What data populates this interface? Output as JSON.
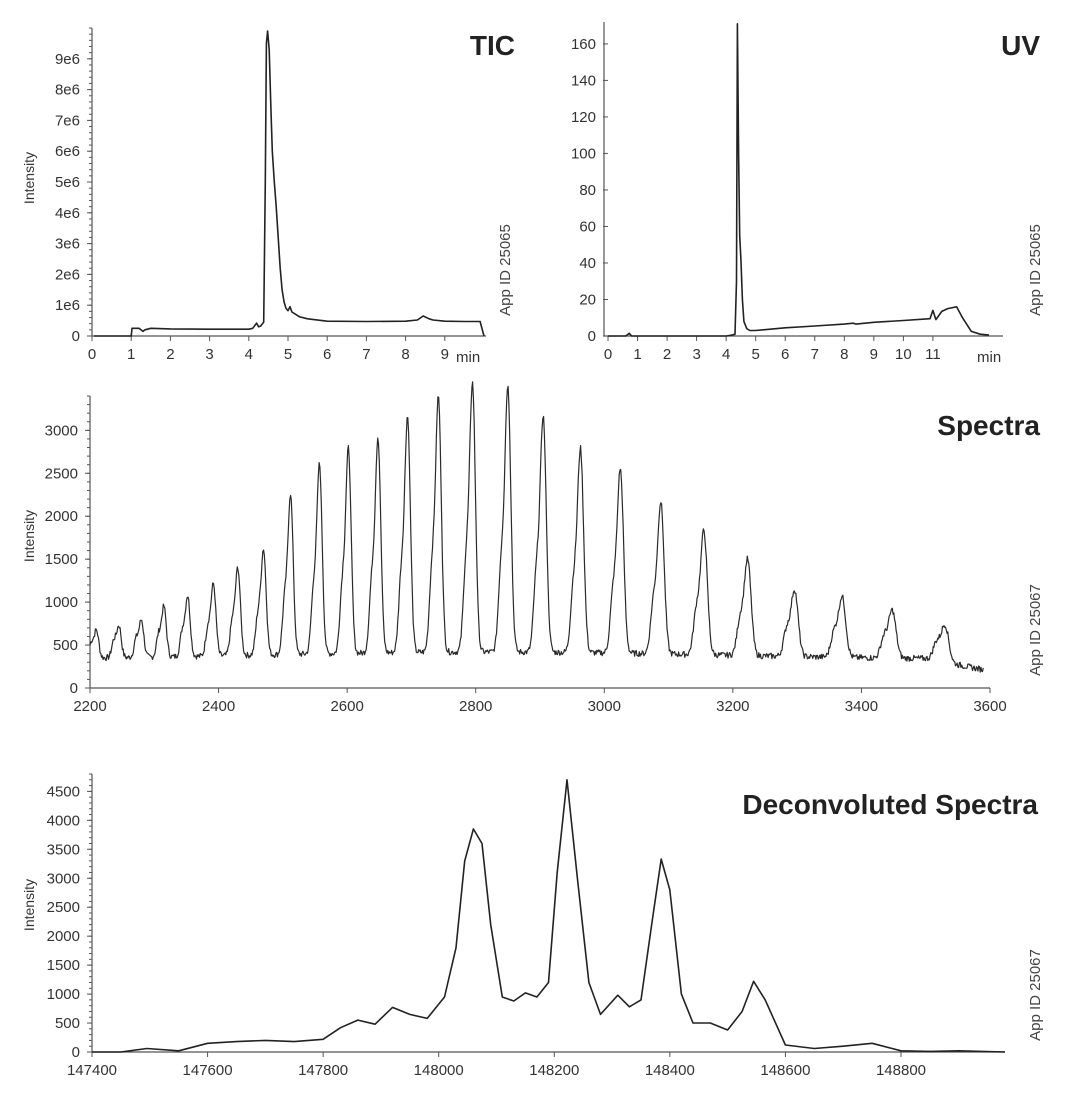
{
  "chart_data": [
    {
      "id": "tic",
      "type": "line",
      "title": "TIC",
      "ylabel": "Intensity",
      "xunit": "min",
      "side_note": "App ID  25065",
      "xlim": [
        0,
        10
      ],
      "ylim": [
        0,
        10000000
      ],
      "xticks": [
        0,
        1,
        2,
        3,
        4,
        5,
        6,
        7,
        8,
        9
      ],
      "yticks": [
        0,
        1000000,
        2000000,
        3000000,
        4000000,
        5000000,
        6000000,
        7000000,
        8000000,
        9000000
      ],
      "ytick_labels": [
        "0",
        "1e6",
        "2e6",
        "3e6",
        "4e6",
        "5e6",
        "6e6",
        "7e6",
        "8e6",
        "9e6"
      ],
      "series": [
        {
          "x": [
            0.05,
            1.0,
            1.02,
            1.2,
            1.3,
            1.35,
            1.5,
            2,
            3,
            4,
            4.1,
            4.2,
            4.25,
            4.3,
            4.38,
            4.42,
            4.45,
            4.48,
            4.52,
            4.56,
            4.6,
            4.65,
            4.7,
            4.75,
            4.8,
            4.85,
            4.9,
            4.95,
            5.0,
            5.05,
            5.1,
            5.2,
            5.3,
            5.5,
            6,
            7,
            8,
            8.3,
            8.45,
            8.6,
            8.7,
            9,
            9.5,
            9.9,
            10.0
          ],
          "y": [
            0,
            0,
            250000,
            250000,
            150000,
            200000,
            250000,
            230000,
            220000,
            220000,
            250000,
            420000,
            300000,
            320000,
            450000,
            5000000,
            9500000,
            9900000,
            9300000,
            7500000,
            6000000,
            5000000,
            4200000,
            3200000,
            2200000,
            1500000,
            1100000,
            900000,
            820000,
            950000,
            780000,
            700000,
            620000,
            560000,
            480000,
            470000,
            480000,
            520000,
            650000,
            560000,
            520000,
            480000,
            470000,
            470000,
            0
          ]
        }
      ]
    },
    {
      "id": "uv",
      "type": "line",
      "title": "UV",
      "xunit": "min",
      "side_note": "App ID  25065",
      "xlim": [
        0,
        13
      ],
      "ylim": [
        0,
        172
      ],
      "xticks": [
        0,
        1,
        2,
        3,
        4,
        5,
        6,
        7,
        8,
        9,
        10,
        11
      ],
      "yticks": [
        0,
        20,
        40,
        60,
        80,
        100,
        120,
        140,
        160
      ],
      "series": [
        {
          "x": [
            0,
            0.6,
            0.72,
            0.8,
            1,
            2,
            3,
            4,
            4.2,
            4.3,
            4.35,
            4.38,
            4.42,
            4.46,
            4.5,
            4.55,
            4.6,
            4.7,
            4.8,
            5,
            6,
            7,
            8,
            8.3,
            8.4,
            9,
            10,
            10.9,
            11.0,
            11.1,
            11.3,
            11.5,
            11.8,
            12.0,
            12.3,
            12.6,
            12.9
          ],
          "y": [
            0,
            0,
            1.5,
            0,
            0,
            0,
            0,
            0,
            0.5,
            1,
            30,
            171,
            100,
            55,
            42,
            20,
            8,
            4,
            3,
            3,
            4.5,
            5.5,
            6.5,
            7,
            6.5,
            7.5,
            8.5,
            9.5,
            14,
            9,
            13.5,
            15,
            16,
            10,
            2.5,
            1,
            0.5
          ]
        }
      ]
    },
    {
      "id": "spectra",
      "type": "line",
      "title": "Spectra",
      "ylabel": "Intensity",
      "side_note": "App ID  25067",
      "xlim": [
        2200,
        3600
      ],
      "ylim": [
        0,
        3400
      ],
      "xticks": [
        2200,
        2400,
        2600,
        2800,
        3000,
        3200,
        3400,
        3600
      ],
      "yticks": [
        0,
        500,
        1000,
        1500,
        2000,
        2500,
        3000
      ],
      "series": [
        {
          "peaks_x": [
            2210,
            2245,
            2280,
            2315,
            2352,
            2392,
            2430,
            2470,
            2512,
            2557,
            2602,
            2648,
            2694,
            2742,
            2795,
            2850,
            2905,
            2963,
            3025,
            3088,
            3155,
            3223,
            3296,
            3370,
            3448,
            3530
          ],
          "peaks_y": [
            620,
            670,
            730,
            880,
            1000,
            1130,
            1310,
            1520,
            2150,
            2480,
            2660,
            2780,
            3020,
            3240,
            3400,
            3360,
            3020,
            2650,
            2420,
            2050,
            1730,
            1410,
            1070,
            1000,
            850,
            730
          ]
        }
      ]
    },
    {
      "id": "deconvoluted",
      "type": "line",
      "title": "Deconvoluted Spectra",
      "ylabel": "Intensity",
      "side_note": "App ID  25067",
      "xlim": [
        147400,
        148980
      ],
      "ylim": [
        0,
        4800
      ],
      "xticks": [
        147400,
        147600,
        147800,
        148000,
        148200,
        148400,
        148600,
        148800
      ],
      "yticks": [
        0,
        500,
        1000,
        1500,
        2000,
        2500,
        3000,
        3500,
        4000,
        4500
      ],
      "series": [
        {
          "x": [
            147400,
            147450,
            147495,
            147550,
            147600,
            147650,
            147700,
            147750,
            147800,
            147830,
            147860,
            147890,
            147920,
            147950,
            147980,
            148010,
            148030,
            148045,
            148060,
            148075,
            148090,
            148110,
            148130,
            148150,
            148170,
            148190,
            148205,
            148222,
            148240,
            148260,
            148280,
            148310,
            148330,
            148350,
            148370,
            148385,
            148400,
            148420,
            148440,
            148470,
            148500,
            148525,
            148545,
            148565,
            148600,
            148650,
            148700,
            148750,
            148800,
            148850,
            148900,
            148980
          ],
          "y": [
            0,
            0,
            60,
            20,
            150,
            180,
            200,
            180,
            220,
            420,
            550,
            480,
            770,
            650,
            580,
            950,
            1800,
            3300,
            3850,
            3600,
            2200,
            950,
            880,
            1020,
            950,
            1200,
            3100,
            4700,
            3000,
            1200,
            650,
            980,
            780,
            900,
            2300,
            3330,
            2800,
            1000,
            500,
            500,
            380,
            700,
            1220,
            900,
            120,
            60,
            100,
            150,
            20,
            10,
            20,
            0
          ]
        }
      ]
    }
  ]
}
